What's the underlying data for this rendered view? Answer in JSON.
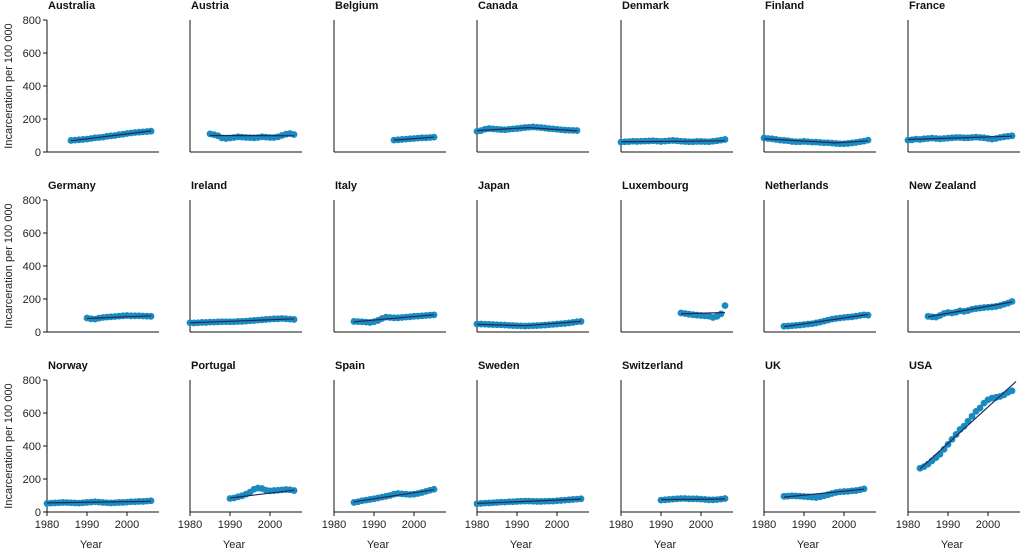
{
  "chart_data": {
    "type": "scatter",
    "xlabel": "Year",
    "ylabel": "Incarceration per 100 000",
    "xlim": [
      1980,
      2008
    ],
    "ylim": [
      0,
      800
    ],
    "x_ticks": [
      "1980",
      "1990",
      "2000"
    ],
    "y_ticks": [
      "0",
      "200",
      "400",
      "600",
      "800"
    ],
    "point_color": "#1a8bc0",
    "trend_color": "#1f2a5a",
    "grid": false,
    "panels": [
      {
        "name": "Australia",
        "x": [
          1986,
          1987,
          1988,
          1989,
          1990,
          1991,
          1992,
          1993,
          1994,
          1995,
          1996,
          1997,
          1998,
          1999,
          2000,
          2001,
          2002,
          2003,
          2004,
          2005,
          2006
        ],
        "y": [
          70,
          72,
          74,
          76,
          78,
          82,
          86,
          88,
          90,
          95,
          98,
          100,
          105,
          108,
          112,
          115,
          118,
          120,
          122,
          124,
          126
        ],
        "trend": [
          [
            1986,
            68
          ],
          [
            2006,
            128
          ]
        ]
      },
      {
        "name": "Austria",
        "x": [
          1985,
          1986,
          1987,
          1988,
          1989,
          1990,
          1991,
          1992,
          1993,
          1994,
          1995,
          1996,
          1997,
          1998,
          1999,
          2000,
          2001,
          2002,
          2003,
          2004,
          2005,
          2006
        ],
        "y": [
          110,
          105,
          98,
          85,
          82,
          85,
          88,
          92,
          90,
          88,
          87,
          86,
          88,
          92,
          90,
          88,
          88,
          92,
          100,
          108,
          112,
          106
        ],
        "trend": [
          [
            1985,
            100
          ],
          [
            2006,
            98
          ]
        ]
      },
      {
        "name": "Belgium",
        "x": [
          1995,
          1996,
          1997,
          1998,
          1999,
          2000,
          2001,
          2002,
          2003,
          2004,
          2005
        ],
        "y": [
          72,
          74,
          76,
          78,
          80,
          82,
          84,
          86,
          86,
          88,
          90
        ],
        "trend": [
          [
            1995,
            72
          ],
          [
            2005,
            90
          ]
        ]
      },
      {
        "name": "Canada",
        "x": [
          1980,
          1981,
          1982,
          1983,
          1984,
          1985,
          1986,
          1987,
          1988,
          1989,
          1990,
          1991,
          1992,
          1993,
          1994,
          1995,
          1996,
          1997,
          1998,
          1999,
          2000,
          2001,
          2002,
          2003,
          2004,
          2005
        ],
        "y": [
          125,
          130,
          138,
          142,
          140,
          138,
          136,
          135,
          138,
          140,
          142,
          145,
          148,
          150,
          152,
          150,
          148,
          145,
          142,
          140,
          138,
          135,
          133,
          132,
          131,
          130
        ],
        "trend": [
          [
            1980,
            130
          ],
          [
            1993,
            148
          ],
          [
            2005,
            128
          ]
        ]
      },
      {
        "name": "Denmark",
        "x": [
          1980,
          1981,
          1982,
          1983,
          1984,
          1985,
          1986,
          1987,
          1988,
          1989,
          1990,
          1991,
          1992,
          1993,
          1994,
          1995,
          1996,
          1997,
          1998,
          1999,
          2000,
          2001,
          2002,
          2003,
          2004,
          2005,
          2006
        ],
        "y": [
          60,
          62,
          63,
          65,
          64,
          65,
          66,
          67,
          68,
          66,
          64,
          66,
          68,
          70,
          68,
          65,
          64,
          62,
          62,
          64,
          64,
          63,
          62,
          65,
          68,
          72,
          76
        ],
        "trend": [
          [
            1980,
            62
          ],
          [
            2006,
            68
          ]
        ]
      },
      {
        "name": "Finland",
        "x": [
          1980,
          1981,
          1982,
          1983,
          1984,
          1985,
          1986,
          1987,
          1988,
          1989,
          1990,
          1991,
          1992,
          1993,
          1994,
          1995,
          1996,
          1997,
          1998,
          1999,
          2000,
          2001,
          2002,
          2003,
          2004,
          2005,
          2006
        ],
        "y": [
          85,
          82,
          80,
          76,
          72,
          70,
          68,
          64,
          62,
          62,
          64,
          62,
          60,
          60,
          58,
          56,
          56,
          54,
          52,
          50,
          50,
          52,
          55,
          58,
          62,
          66,
          72
        ],
        "trend": [
          [
            1980,
            80
          ],
          [
            1998,
            55
          ],
          [
            2006,
            68
          ]
        ]
      },
      {
        "name": "France",
        "x": [
          1980,
          1981,
          1982,
          1983,
          1984,
          1985,
          1986,
          1987,
          1988,
          1989,
          1990,
          1991,
          1992,
          1993,
          1994,
          1995,
          1996,
          1997,
          1998,
          1999,
          2000,
          2001,
          2002,
          2003,
          2004,
          2005,
          2006
        ],
        "y": [
          72,
          74,
          78,
          76,
          80,
          82,
          84,
          82,
          80,
          82,
          84,
          86,
          88,
          88,
          86,
          86,
          88,
          90,
          88,
          86,
          82,
          78,
          82,
          88,
          92,
          95,
          98
        ],
        "trend": [
          [
            1980,
            76
          ],
          [
            2006,
            96
          ]
        ]
      },
      {
        "name": "Germany",
        "x": [
          1990,
          1991,
          1992,
          1993,
          1994,
          1995,
          1996,
          1997,
          1998,
          1999,
          2000,
          2001,
          2002,
          2003,
          2004,
          2005,
          2006
        ],
        "y": [
          85,
          80,
          78,
          84,
          88,
          90,
          92,
          94,
          96,
          98,
          100,
          98,
          98,
          98,
          97,
          96,
          95
        ],
        "trend": [
          [
            1990,
            82
          ],
          [
            2006,
            98
          ]
        ]
      },
      {
        "name": "Ireland",
        "x": [
          1980,
          1981,
          1982,
          1983,
          1984,
          1985,
          1986,
          1987,
          1988,
          1989,
          1990,
          1991,
          1992,
          1993,
          1994,
          1995,
          1996,
          1997,
          1998,
          1999,
          2000,
          2001,
          2002,
          2003,
          2004,
          2005,
          2006
        ],
        "y": [
          56,
          55,
          56,
          58,
          58,
          60,
          60,
          61,
          62,
          62,
          62,
          62,
          64,
          64,
          66,
          68,
          70,
          72,
          74,
          76,
          78,
          80,
          80,
          82,
          80,
          78,
          76
        ],
        "trend": [
          [
            1980,
            56
          ],
          [
            2006,
            80
          ]
        ]
      },
      {
        "name": "Italy",
        "x": [
          1985,
          1986,
          1987,
          1988,
          1989,
          1990,
          1991,
          1992,
          1993,
          1994,
          1995,
          1996,
          1997,
          1998,
          1999,
          2000,
          2001,
          2002,
          2003,
          2004,
          2005
        ],
        "y": [
          64,
          63,
          62,
          60,
          58,
          62,
          70,
          82,
          90,
          88,
          86,
          86,
          88,
          90,
          92,
          95,
          96,
          98,
          100,
          102,
          104
        ],
        "trend": [
          [
            1985,
            62
          ],
          [
            2005,
            104
          ]
        ]
      },
      {
        "name": "Japan",
        "x": [
          1980,
          1981,
          1982,
          1983,
          1984,
          1985,
          1986,
          1987,
          1988,
          1989,
          1990,
          1991,
          1992,
          1993,
          1994,
          1995,
          1996,
          1997,
          1998,
          1999,
          2000,
          2001,
          2002,
          2003,
          2004,
          2005,
          2006
        ],
        "y": [
          48,
          48,
          47,
          46,
          45,
          44,
          43,
          42,
          40,
          39,
          38,
          37,
          36,
          37,
          38,
          39,
          40,
          42,
          44,
          46,
          48,
          50,
          52,
          55,
          58,
          62,
          64
        ],
        "trend": [
          [
            1980,
            46
          ],
          [
            1992,
            38
          ],
          [
            2006,
            64
          ]
        ]
      },
      {
        "name": "Luxembourg",
        "x": [
          1995,
          1996,
          1997,
          1998,
          1999,
          2000,
          2001,
          2002,
          2003,
          2004,
          2005,
          2006
        ],
        "y": [
          115,
          112,
          108,
          105,
          102,
          100,
          98,
          96,
          88,
          95,
          110,
          160
        ],
        "trend": [
          [
            1995,
            110
          ],
          [
            2006,
            118
          ]
        ]
      },
      {
        "name": "Netherlands",
        "x": [
          1985,
          1986,
          1987,
          1988,
          1989,
          1990,
          1991,
          1992,
          1993,
          1994,
          1995,
          1996,
          1997,
          1998,
          1999,
          2000,
          2001,
          2002,
          2003,
          2004,
          2005,
          2006
        ],
        "y": [
          35,
          36,
          38,
          40,
          42,
          45,
          48,
          50,
          55,
          60,
          66,
          72,
          78,
          82,
          85,
          88,
          90,
          92,
          96,
          100,
          104,
          102
        ],
        "trend": [
          [
            1985,
            32
          ],
          [
            2006,
            106
          ]
        ]
      },
      {
        "name": "New Zealand",
        "x": [
          1985,
          1986,
          1987,
          1988,
          1989,
          1990,
          1991,
          1992,
          1993,
          1994,
          1995,
          1996,
          1997,
          1998,
          1999,
          2000,
          2001,
          2002,
          2003,
          2004,
          2005,
          2006
        ],
        "y": [
          95,
          92,
          90,
          100,
          112,
          118,
          115,
          120,
          128,
          125,
          130,
          138,
          142,
          145,
          148,
          150,
          152,
          155,
          160,
          168,
          175,
          185
        ],
        "trend": [
          [
            1985,
            92
          ],
          [
            2006,
            182
          ]
        ]
      },
      {
        "name": "Norway",
        "x": [
          1980,
          1981,
          1982,
          1983,
          1984,
          1985,
          1986,
          1987,
          1988,
          1989,
          1990,
          1991,
          1992,
          1993,
          1994,
          1995,
          1996,
          1997,
          1998,
          1999,
          2000,
          2001,
          2002,
          2003,
          2004,
          2005,
          2006
        ],
        "y": [
          52,
          54,
          55,
          56,
          58,
          57,
          56,
          55,
          54,
          56,
          58,
          60,
          62,
          60,
          58,
          56,
          55,
          56,
          58,
          58,
          60,
          62,
          62,
          64,
          64,
          66,
          68
        ],
        "trend": [
          [
            1980,
            55
          ],
          [
            2006,
            65
          ]
        ]
      },
      {
        "name": "Portugal",
        "x": [
          1990,
          1991,
          1992,
          1993,
          1994,
          1995,
          1996,
          1997,
          1998,
          1999,
          2000,
          2001,
          2002,
          2003,
          2004,
          2005,
          2006
        ],
        "y": [
          82,
          85,
          92,
          98,
          108,
          120,
          138,
          145,
          142,
          132,
          128,
          130,
          132,
          134,
          136,
          135,
          130
        ],
        "trend": [
          [
            1990,
            85
          ],
          [
            2006,
            132
          ]
        ]
      },
      {
        "name": "Spain",
        "x": [
          1985,
          1986,
          1987,
          1988,
          1989,
          1990,
          1991,
          1992,
          1993,
          1994,
          1995,
          1996,
          1997,
          1998,
          1999,
          2000,
          2001,
          2002,
          2003,
          2004,
          2005
        ],
        "y": [
          58,
          62,
          68,
          72,
          76,
          80,
          85,
          90,
          95,
          100,
          108,
          112,
          110,
          108,
          106,
          108,
          112,
          118,
          125,
          132,
          138
        ],
        "trend": [
          [
            1985,
            62
          ],
          [
            2005,
            135
          ]
        ]
      },
      {
        "name": "Sweden",
        "x": [
          1980,
          1981,
          1982,
          1983,
          1984,
          1985,
          1986,
          1987,
          1988,
          1989,
          1990,
          1991,
          1992,
          1993,
          1994,
          1995,
          1996,
          1997,
          1998,
          1999,
          2000,
          2001,
          2002,
          2003,
          2004,
          2005,
          2006
        ],
        "y": [
          50,
          52,
          54,
          55,
          56,
          58,
          60,
          60,
          62,
          62,
          64,
          65,
          66,
          66,
          65,
          64,
          64,
          65,
          66,
          66,
          68,
          70,
          72,
          74,
          76,
          78,
          80
        ],
        "trend": [
          [
            1980,
            52
          ],
          [
            2006,
            78
          ]
        ]
      },
      {
        "name": "Switzerland",
        "x": [
          1990,
          1991,
          1992,
          1993,
          1994,
          1995,
          1996,
          1997,
          1998,
          1999,
          2000,
          2001,
          2002,
          2003,
          2004,
          2005,
          2006
        ],
        "y": [
          72,
          74,
          76,
          78,
          80,
          82,
          82,
          80,
          80,
          80,
          78,
          76,
          74,
          74,
          75,
          78,
          82
        ],
        "trend": [
          [
            1990,
            75
          ],
          [
            2006,
            79
          ]
        ]
      },
      {
        "name": "UK",
        "x": [
          1985,
          1986,
          1987,
          1988,
          1989,
          1990,
          1991,
          1992,
          1993,
          1994,
          1995,
          1996,
          1997,
          1998,
          1999,
          2000,
          2001,
          2002,
          2003,
          2004,
          2005
        ],
        "y": [
          95,
          96,
          98,
          97,
          96,
          94,
          92,
          90,
          88,
          92,
          98,
          105,
          112,
          118,
          122,
          124,
          125,
          128,
          130,
          135,
          140
        ],
        "trend": [
          [
            1985,
            90
          ],
          [
            2005,
            138
          ]
        ]
      },
      {
        "name": "USA",
        "x": [
          1983,
          1984,
          1985,
          1986,
          1987,
          1988,
          1989,
          1990,
          1991,
          1992,
          1993,
          1994,
          1995,
          1996,
          1997,
          1998,
          1999,
          2000,
          2001,
          2002,
          2003,
          2004,
          2005,
          2006
        ],
        "y": [
          265,
          275,
          290,
          310,
          330,
          350,
          380,
          410,
          440,
          470,
          500,
          520,
          550,
          580,
          610,
          630,
          660,
          680,
          690,
          695,
          700,
          710,
          725,
          735
        ],
        "trend": [
          [
            1983,
            262
          ],
          [
            2007,
            790
          ]
        ]
      }
    ]
  }
}
